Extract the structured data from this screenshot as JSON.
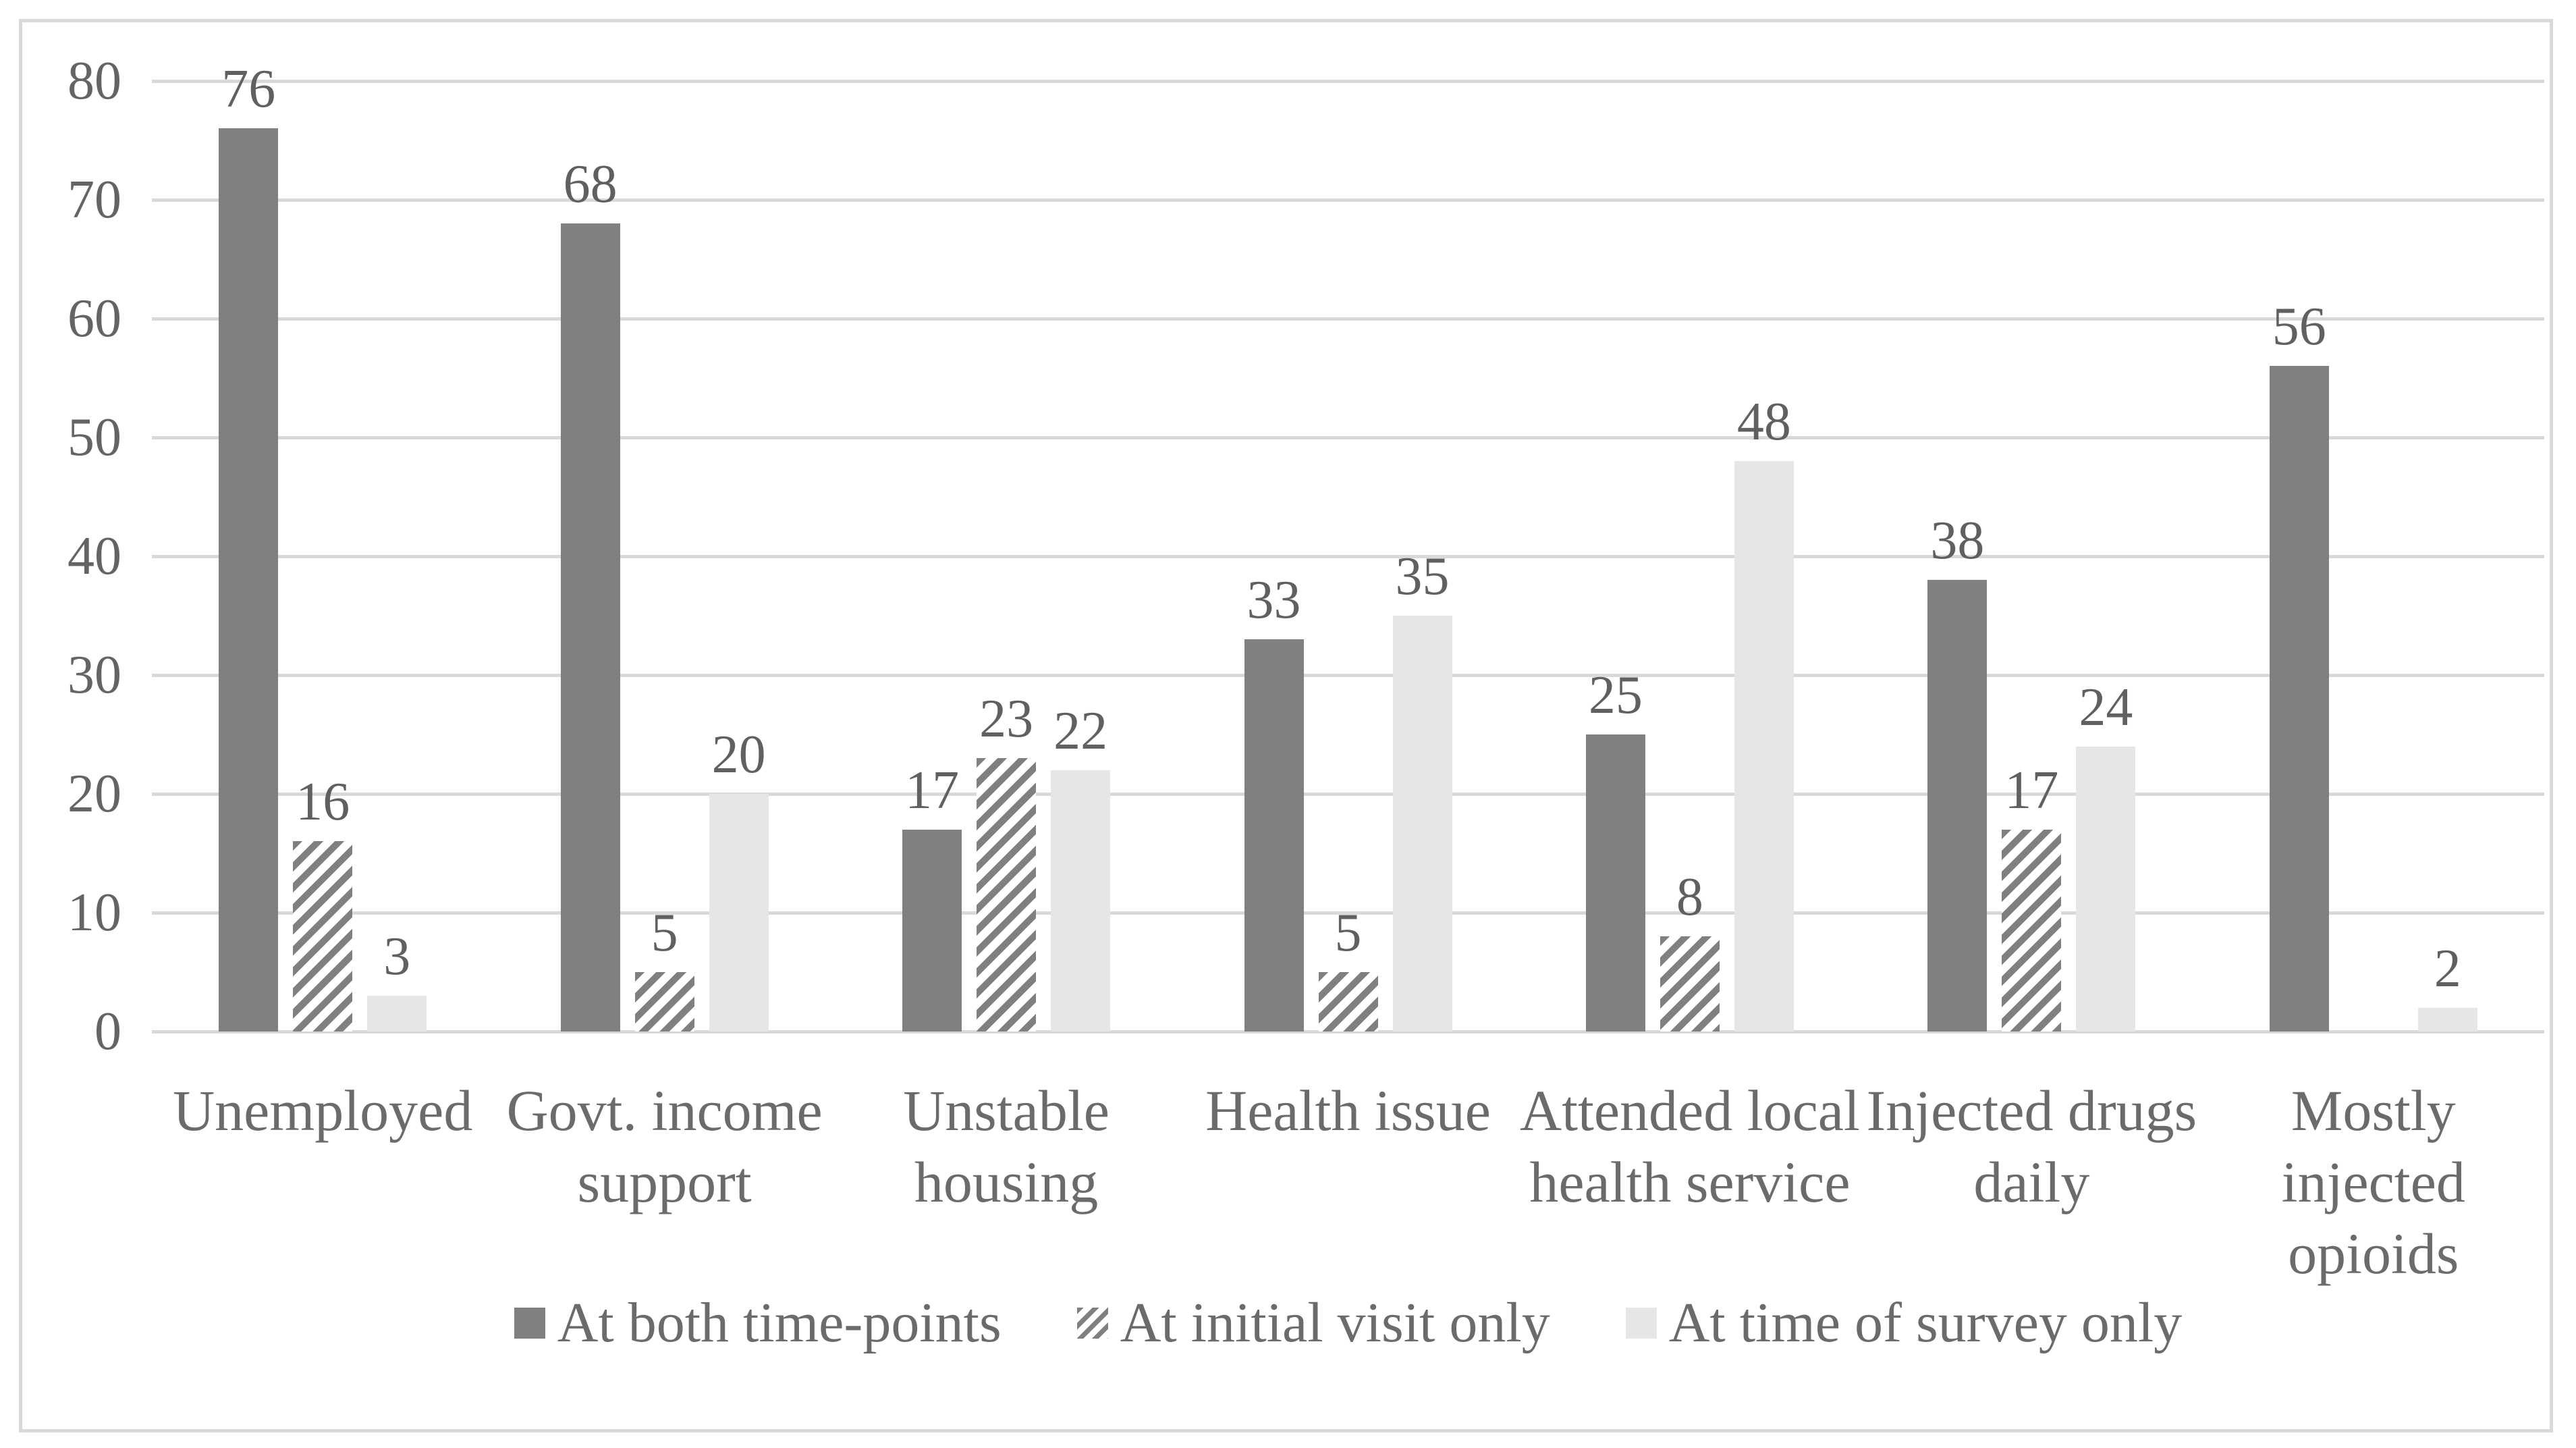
{
  "chart_data": {
    "type": "bar",
    "title": "",
    "xlabel": "",
    "ylabel": "",
    "categories": [
      "Unemployed",
      "Govt. income support",
      "Unstable housing",
      "Health issue",
      "Attended local health service",
      "Injected drugs daily",
      "Mostly injected opioids"
    ],
    "category_label_lines": [
      [
        "Unemployed"
      ],
      [
        "Govt. income",
        "support"
      ],
      [
        "Unstable",
        "housing"
      ],
      [
        "Health issue"
      ],
      [
        "Attended local",
        "health service"
      ],
      [
        "Injected drugs",
        "daily"
      ],
      [
        "Mostly",
        "injected",
        "opioids"
      ]
    ],
    "series": [
      {
        "name": "At both time-points",
        "style": "solid-dark",
        "values": [
          76,
          68,
          17,
          33,
          25,
          38,
          56
        ]
      },
      {
        "name": "At initial visit only",
        "style": "hatched",
        "values": [
          16,
          5,
          23,
          5,
          8,
          17,
          null
        ]
      },
      {
        "name": "At time of survey only",
        "style": "solid-light",
        "values": [
          3,
          20,
          22,
          35,
          48,
          24,
          2
        ]
      }
    ],
    "ylim": [
      0,
      80
    ],
    "ytick_step": 10,
    "ytick_labels": [
      "0",
      "10",
      "20",
      "30",
      "40",
      "50",
      "60",
      "70",
      "80"
    ],
    "grid": true,
    "legend_position": "bottom",
    "colors": {
      "solid_dark": "#808080",
      "solid_light": "#e6e6e6",
      "hatch_foreground": "#808080",
      "hatch_background": "#ffffff",
      "gridline": "#d9d9d9",
      "frame_border": "#d9d9d9",
      "text": "#646464",
      "background": "#ffffff"
    }
  }
}
